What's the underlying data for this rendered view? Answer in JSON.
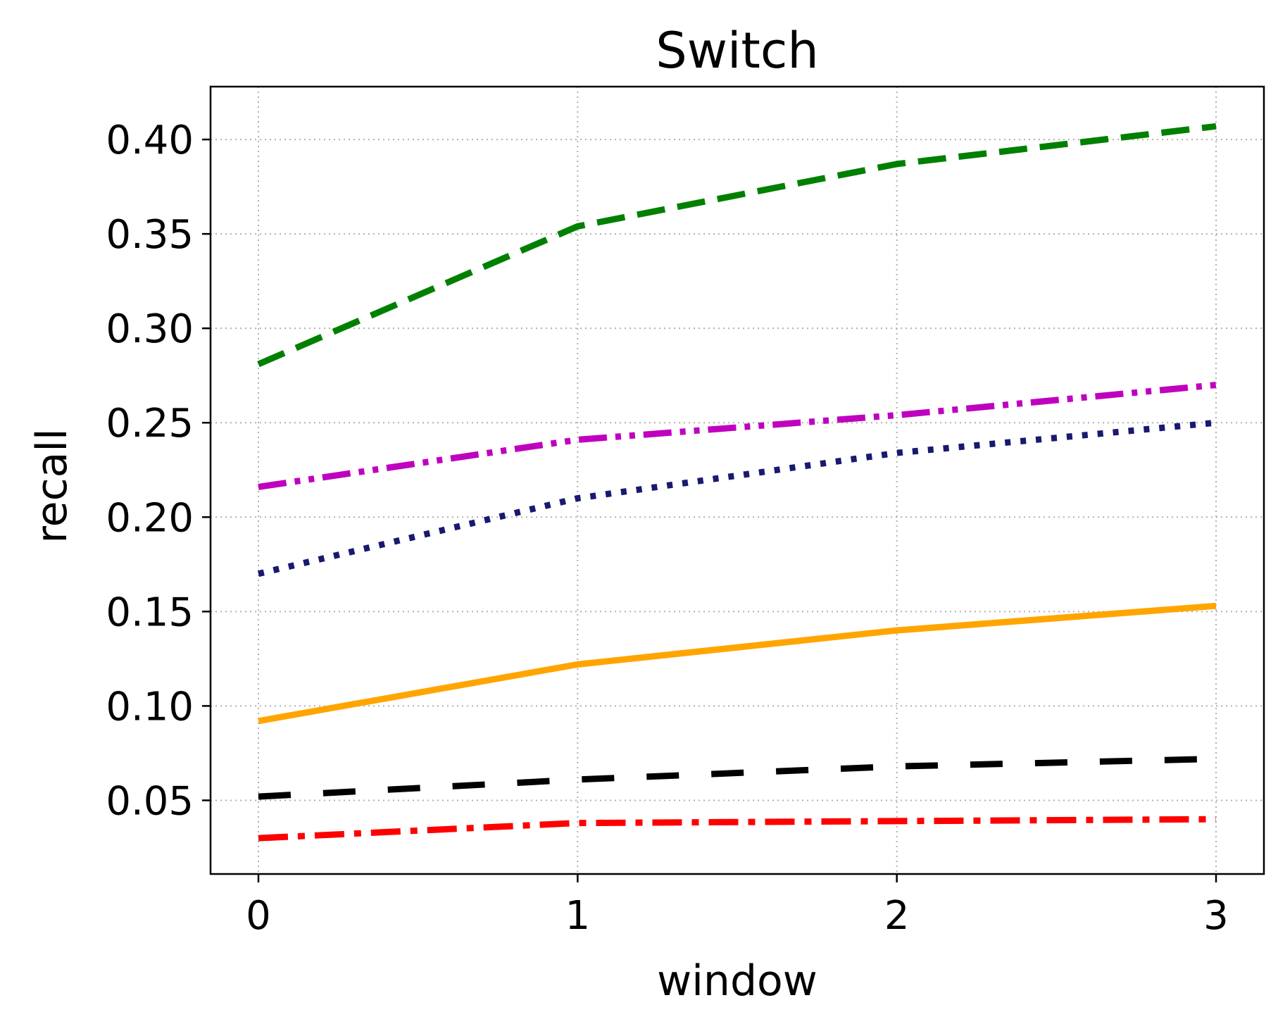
{
  "chart_data": {
    "type": "line",
    "title": "Switch",
    "xlabel": "window",
    "ylabel": "recall",
    "x": [
      0,
      1,
      2,
      3
    ],
    "xticks": [
      0,
      1,
      2,
      3
    ],
    "xtick_labels": [
      "0",
      "1",
      "2",
      "3"
    ],
    "yticks": [
      0.05,
      0.1,
      0.15,
      0.2,
      0.25,
      0.3,
      0.35,
      0.4
    ],
    "ytick_labels": [
      "0.05",
      "0.10",
      "0.15",
      "0.20",
      "0.25",
      "0.30",
      "0.35",
      "0.40"
    ],
    "xlim": [
      -0.15,
      3.15
    ],
    "ylim": [
      0.011,
      0.428
    ],
    "grid": true,
    "series": [
      {
        "values": [
          0.281,
          0.354,
          0.387,
          0.407
        ],
        "color": "#008000",
        "style": "dashed"
      },
      {
        "values": [
          0.216,
          0.241,
          0.254,
          0.27
        ],
        "color": "#bf00bf",
        "style": "dashdotdot"
      },
      {
        "values": [
          0.17,
          0.21,
          0.234,
          0.25
        ],
        "color": "#191970",
        "style": "dotted"
      },
      {
        "values": [
          0.092,
          0.122,
          0.14,
          0.153
        ],
        "color": "#ffa500",
        "style": "solid"
      },
      {
        "values": [
          0.052,
          0.061,
          0.068,
          0.072
        ],
        "color": "#000000",
        "style": "longdash"
      },
      {
        "values": [
          0.03,
          0.038,
          0.039,
          0.04
        ],
        "color": "#ff0000",
        "style": "dashdot"
      }
    ]
  }
}
